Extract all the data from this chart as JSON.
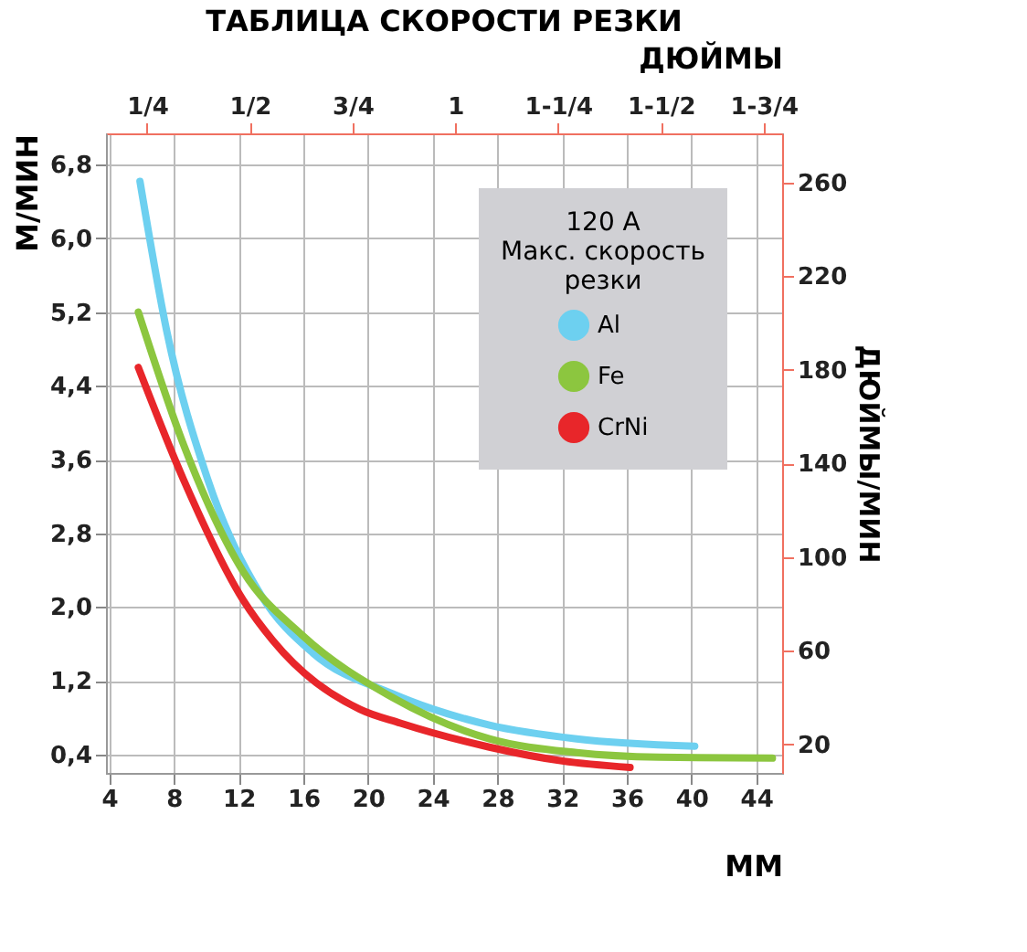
{
  "chart_data": {
    "type": "line",
    "title": "ТАБЛИЦА СКОРОСТИ РЕЗКИ",
    "xlabel": "ММ",
    "x2label": "ДЮЙМЫ",
    "ylabel": "М/МИН",
    "y2label": "ДЮЙМЫ/МИН",
    "legend_title": "120 A\nМакс. скорость\nрезки",
    "legend": "top right",
    "grid": true,
    "marker": "none",
    "line_style": "solid",
    "xlim": [
      3.8,
      45.6
    ],
    "xticks": [
      4,
      8,
      12,
      16,
      20,
      24,
      28,
      32,
      36,
      40,
      44
    ],
    "x2lim": [
      0.15,
      1.795
    ],
    "x2ticks": [
      {
        "value": 0.25,
        "label": "1/4"
      },
      {
        "value": 0.5,
        "label": "1/2"
      },
      {
        "value": 0.75,
        "label": "3/4"
      },
      {
        "value": 1,
        "label": "1"
      },
      {
        "value": 1.25,
        "label": "1-1/4"
      },
      {
        "value": 1.5,
        "label": "1-1/2"
      },
      {
        "value": 1.75,
        "label": "1-3/4"
      }
    ],
    "ylim": [
      0.2,
      7.14
    ],
    "yticks": [
      {
        "value": 0.4,
        "label": "0,4"
      },
      {
        "value": 1.2,
        "label": "1,2"
      },
      {
        "value": 2.0,
        "label": "2,0"
      },
      {
        "value": 2.8,
        "label": "2,8"
      },
      {
        "value": 3.6,
        "label": "3,6"
      },
      {
        "value": 4.4,
        "label": "4,4"
      },
      {
        "value": 5.2,
        "label": "5,2"
      },
      {
        "value": 6.0,
        "label": "6,0"
      },
      {
        "value": 6.8,
        "label": "6,8"
      }
    ],
    "y2lim": [
      7.9,
      281
    ],
    "y2ticks": [
      20,
      60,
      100,
      140,
      180,
      220,
      260
    ],
    "series": [
      {
        "name": "Al",
        "color": "#6dd0f0",
        "x": [
          5.9,
          7.55,
          10.1,
          13.35,
          16.6,
          21.5,
          27.5,
          32.9,
          40.2
        ],
        "values": [
          6.62,
          5.0,
          3.38,
          2.14,
          1.5,
          1.06,
          0.72,
          0.57,
          0.49
        ]
      },
      {
        "name": "Fe",
        "color": "#8cc63f",
        "x": [
          5.8,
          8.6,
          12.3,
          15.9,
          21.5,
          27.5,
          32.9,
          38,
          45.0
        ],
        "values": [
          5.2,
          3.76,
          2.38,
          1.7,
          1.02,
          0.57,
          0.42,
          0.37,
          0.36
        ]
      },
      {
        "name": "CrNi",
        "color": "#e8262a",
        "x": [
          5.8,
          8.6,
          12.3,
          14.1,
          19.5,
          22.0,
          27.5,
          32,
          36.2
        ],
        "values": [
          4.6,
          3.38,
          2.07,
          1.64,
          0.89,
          0.74,
          0.48,
          0.33,
          0.26
        ]
      }
    ]
  }
}
